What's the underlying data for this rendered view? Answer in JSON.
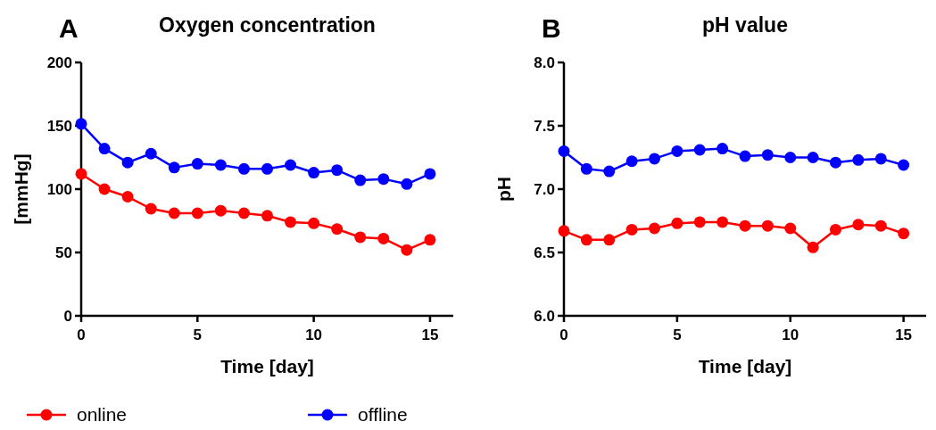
{
  "chart_data": [
    {
      "type": "line",
      "title": "Oxygen concentration",
      "annotations": [
        "A"
      ],
      "xlabel": "Time [day]",
      "ylabel": "[mmHg]",
      "x": [
        0,
        1,
        2,
        3,
        4,
        5,
        6,
        7,
        8,
        9,
        10,
        11,
        12,
        13,
        14,
        15
      ],
      "xlim": [
        0,
        16
      ],
      "xticks": [
        0,
        5,
        10,
        15
      ],
      "ylim": [
        0,
        200
      ],
      "yticks": [
        0,
        50,
        100,
        150,
        200
      ],
      "marker": "circle",
      "legend": "bottom",
      "series": [
        {
          "name": "online",
          "color": "#ff0000",
          "values": [
            112,
            100,
            94,
            84.5,
            81,
            81,
            83,
            81,
            79,
            74,
            73,
            68.5,
            62,
            61,
            52,
            60
          ]
        },
        {
          "name": "offline",
          "color": "#0000ff",
          "values": [
            151.5,
            132,
            121,
            128,
            117,
            120,
            119,
            116,
            116,
            119,
            113,
            115,
            107,
            108,
            104,
            112
          ]
        }
      ]
    },
    {
      "type": "line",
      "title": "pH value",
      "annotations": [
        "B"
      ],
      "xlabel": "Time [day]",
      "ylabel": "pH",
      "x": [
        0,
        1,
        2,
        3,
        4,
        5,
        6,
        7,
        8,
        9,
        10,
        11,
        12,
        13,
        14,
        15
      ],
      "xlim": [
        0,
        16
      ],
      "xticks": [
        0,
        5,
        10,
        15
      ],
      "ylim": [
        6,
        8
      ],
      "yticks": [
        {
          "value": 6,
          "label": "6.0"
        },
        {
          "value": 6.5,
          "label": "6.5"
        },
        {
          "value": 7,
          "label": "7.0"
        },
        {
          "value": 7.5,
          "label": "7.5"
        },
        {
          "value": 8,
          "label": "8.0"
        }
      ],
      "marker": "circle",
      "series": [
        {
          "color": "#ff0000",
          "values": [
            6.67,
            6.6,
            6.6,
            6.68,
            6.69,
            6.73,
            6.74,
            6.74,
            6.71,
            6.71,
            6.69,
            6.54,
            6.68,
            6.72,
            6.71,
            6.65
          ]
        },
        {
          "color": "#0000ff",
          "values": [
            7.3,
            7.16,
            7.14,
            7.22,
            7.24,
            7.3,
            7.31,
            7.32,
            7.26,
            7.27,
            7.25,
            7.25,
            7.21,
            7.23,
            7.24,
            7.19
          ]
        }
      ]
    }
  ]
}
